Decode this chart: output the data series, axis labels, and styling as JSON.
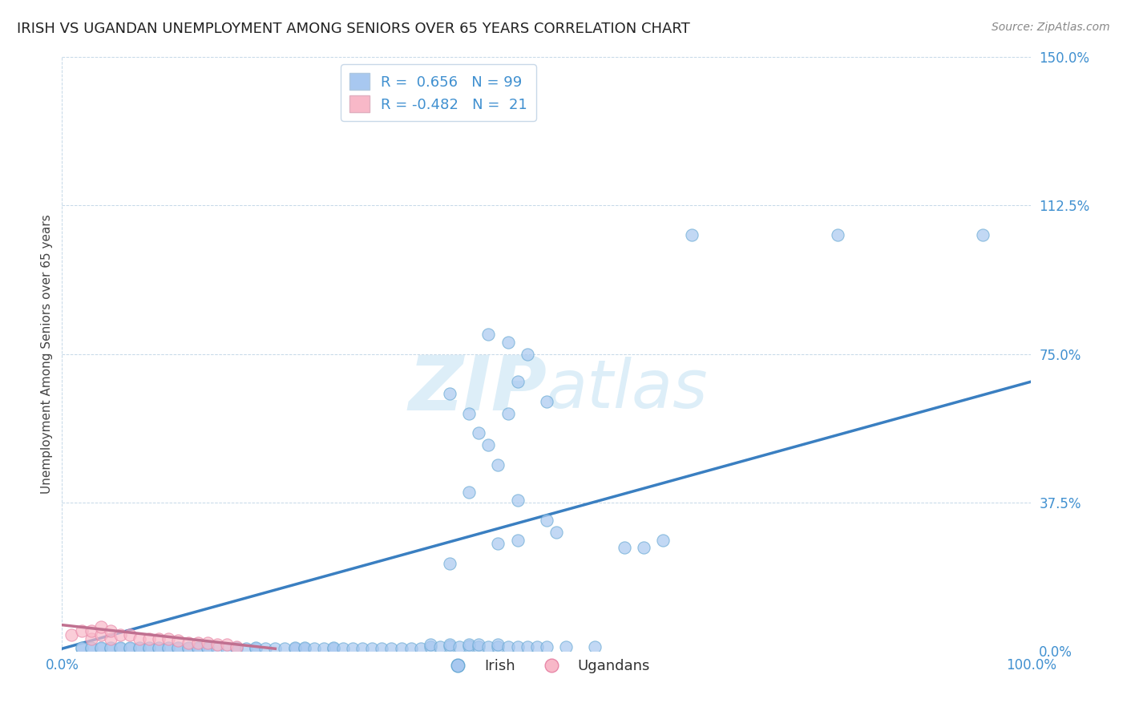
{
  "title": "IRISH VS UGANDAN UNEMPLOYMENT AMONG SENIORS OVER 65 YEARS CORRELATION CHART",
  "source": "Source: ZipAtlas.com",
  "ylabel": "Unemployment Among Seniors over 65 years",
  "xlim": [
    0.0,
    1.0
  ],
  "ylim": [
    0.0,
    1.5
  ],
  "yticks": [
    0.0,
    0.375,
    0.75,
    1.125,
    1.5
  ],
  "ytick_labels": [
    "0.0%",
    "37.5%",
    "75.0%",
    "112.5%",
    "150.0%"
  ],
  "xtick_labels": [
    "0.0%",
    "100.0%"
  ],
  "xtick_vals": [
    0.0,
    1.0
  ],
  "legend_irish_R": "0.656",
  "legend_irish_N": "99",
  "legend_ugandan_R": "-0.482",
  "legend_ugandan_N": "21",
  "irish_color": "#a8c8f0",
  "irish_edge_color": "#6aaad4",
  "ugandan_color": "#f8b8c8",
  "ugandan_edge_color": "#e888a8",
  "irish_line_color": "#3a7fc1",
  "ugandan_line_color": "#c07090",
  "tick_color": "#4090d0",
  "watermark_color": "#ddeef8",
  "irish_scatter_x": [
    0.02,
    0.02,
    0.03,
    0.03,
    0.04,
    0.04,
    0.05,
    0.05,
    0.06,
    0.06,
    0.07,
    0.07,
    0.08,
    0.08,
    0.09,
    0.09,
    0.1,
    0.1,
    0.11,
    0.11,
    0.12,
    0.12,
    0.13,
    0.13,
    0.14,
    0.14,
    0.15,
    0.15,
    0.16,
    0.17,
    0.18,
    0.18,
    0.19,
    0.2,
    0.2,
    0.21,
    0.22,
    0.23,
    0.24,
    0.24,
    0.25,
    0.25,
    0.26,
    0.27,
    0.28,
    0.28,
    0.29,
    0.3,
    0.31,
    0.32,
    0.33,
    0.34,
    0.35,
    0.36,
    0.37,
    0.38,
    0.38,
    0.39,
    0.4,
    0.4,
    0.41,
    0.42,
    0.42,
    0.43,
    0.43,
    0.44,
    0.45,
    0.45,
    0.46,
    0.47,
    0.48,
    0.49,
    0.5,
    0.52,
    0.55,
    0.42,
    0.44,
    0.46,
    0.47,
    0.48,
    0.5,
    0.44,
    0.46,
    0.65,
    0.8,
    0.95,
    0.58,
    0.6,
    0.62,
    0.45,
    0.47,
    0.43,
    0.42,
    0.4,
    0.5,
    0.51,
    0.4,
    0.45,
    0.47
  ],
  "irish_scatter_y": [
    0.005,
    0.008,
    0.005,
    0.008,
    0.005,
    0.008,
    0.005,
    0.008,
    0.005,
    0.008,
    0.005,
    0.008,
    0.005,
    0.008,
    0.005,
    0.008,
    0.005,
    0.008,
    0.005,
    0.008,
    0.005,
    0.008,
    0.005,
    0.008,
    0.005,
    0.008,
    0.005,
    0.008,
    0.005,
    0.005,
    0.005,
    0.008,
    0.005,
    0.005,
    0.008,
    0.005,
    0.005,
    0.005,
    0.005,
    0.008,
    0.005,
    0.008,
    0.005,
    0.005,
    0.005,
    0.008,
    0.005,
    0.005,
    0.005,
    0.005,
    0.005,
    0.005,
    0.005,
    0.005,
    0.005,
    0.01,
    0.015,
    0.01,
    0.012,
    0.015,
    0.01,
    0.012,
    0.015,
    0.01,
    0.015,
    0.01,
    0.01,
    0.015,
    0.01,
    0.01,
    0.01,
    0.01,
    0.01,
    0.01,
    0.01,
    0.4,
    0.52,
    0.6,
    0.68,
    0.75,
    0.63,
    0.8,
    0.78,
    1.05,
    1.05,
    1.05,
    0.26,
    0.26,
    0.28,
    0.47,
    0.38,
    0.55,
    0.6,
    0.65,
    0.33,
    0.3,
    0.22,
    0.27,
    0.28
  ],
  "ugandan_scatter_x": [
    0.01,
    0.02,
    0.03,
    0.03,
    0.04,
    0.04,
    0.05,
    0.05,
    0.06,
    0.07,
    0.08,
    0.09,
    0.1,
    0.11,
    0.12,
    0.13,
    0.14,
    0.15,
    0.16,
    0.17,
    0.18
  ],
  "ugandan_scatter_y": [
    0.04,
    0.05,
    0.03,
    0.05,
    0.04,
    0.06,
    0.03,
    0.05,
    0.04,
    0.04,
    0.03,
    0.03,
    0.03,
    0.03,
    0.025,
    0.02,
    0.02,
    0.02,
    0.015,
    0.015,
    0.01
  ],
  "irish_line_x0": 0.0,
  "irish_line_y0": 0.005,
  "irish_line_x1": 1.0,
  "irish_line_y1": 0.68,
  "ugandan_line_x0": 0.0,
  "ugandan_line_y0": 0.065,
  "ugandan_line_x1": 0.22,
  "ugandan_line_y1": 0.005
}
